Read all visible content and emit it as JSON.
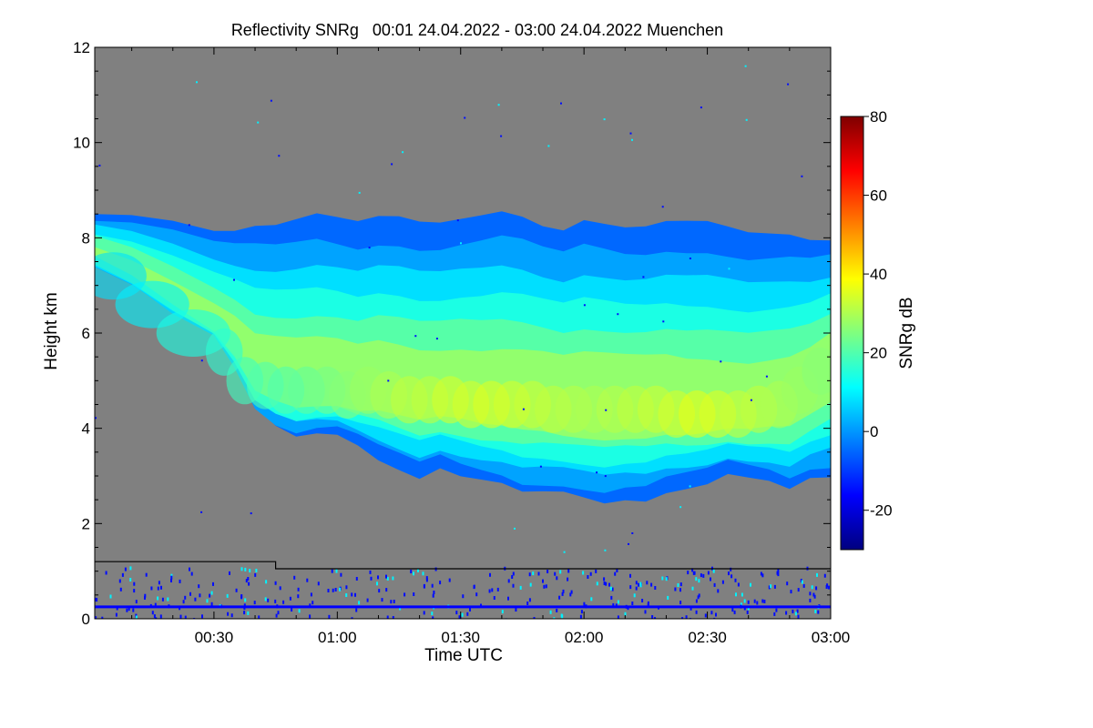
{
  "chart_data": {
    "type": "heatmap",
    "title": "Reflectivity SNRg   00:01 24.04.2022 - 03:00 24.04.2022 Muenchen",
    "xlabel": "Time UTC",
    "ylabel": "Height km",
    "x_ticks": [
      "00:30",
      "01:00",
      "01:30",
      "02:00",
      "02:30",
      "03:00"
    ],
    "x_tick_minutes": [
      30,
      60,
      90,
      120,
      150,
      180
    ],
    "xlim_minutes": [
      1,
      180
    ],
    "y_ticks": [
      0,
      2,
      4,
      6,
      8,
      10,
      12
    ],
    "ylim": [
      0,
      12
    ],
    "colorbar": {
      "label": "SNRg dB",
      "ticks": [
        -20,
        0,
        20,
        40,
        60,
        80
      ],
      "range": [
        -30,
        80
      ],
      "colormap": [
        "#00007f",
        "#0000ff",
        "#007fff",
        "#00ffff",
        "#7fff7f",
        "#ffff00",
        "#ff7f00",
        "#ff0000",
        "#7f0000"
      ]
    },
    "background_color": "#808080",
    "cloud": {
      "time_minutes": [
        1,
        10,
        20,
        30,
        35,
        40,
        45,
        50,
        55,
        60,
        65,
        70,
        75,
        80,
        85,
        90,
        95,
        100,
        105,
        110,
        115,
        120,
        125,
        130,
        135,
        140,
        145,
        150,
        155,
        160,
        165,
        170,
        175,
        180
      ],
      "top_km": [
        8.5,
        8.5,
        8.4,
        8.2,
        8.2,
        8.3,
        8.3,
        8.4,
        8.5,
        8.4,
        8.3,
        8.4,
        8.4,
        8.3,
        8.3,
        8.4,
        8.5,
        8.6,
        8.5,
        8.3,
        8.2,
        8.4,
        8.3,
        8.2,
        8.2,
        8.3,
        8.3,
        8.3,
        8.2,
        8.1,
        8.1,
        8.1,
        8.0,
        8.0
      ],
      "base_km": [
        7.4,
        7.0,
        6.4,
        6.0,
        5.3,
        4.4,
        4.0,
        3.8,
        3.9,
        3.9,
        3.7,
        3.4,
        3.2,
        3.0,
        3.2,
        3.0,
        2.9,
        2.8,
        2.6,
        2.6,
        2.6,
        2.5,
        2.4,
        2.5,
        2.5,
        2.7,
        2.8,
        2.9,
        3.1,
        3.0,
        2.9,
        2.7,
        2.9,
        2.9
      ],
      "core_snr_db": [
        5,
        8,
        10,
        14,
        16,
        18,
        20,
        20,
        22,
        24,
        26,
        28,
        30,
        32,
        32,
        34,
        34,
        35,
        34,
        33,
        32,
        31,
        30,
        31,
        32,
        33,
        34,
        36,
        35,
        33,
        32,
        30,
        28,
        26
      ],
      "core_height_km": [
        7.6,
        7.2,
        6.6,
        6.0,
        5.6,
        5.0,
        4.9,
        4.8,
        4.8,
        4.8,
        4.7,
        4.8,
        4.7,
        4.6,
        4.6,
        4.6,
        4.5,
        4.5,
        4.5,
        4.5,
        4.4,
        4.4,
        4.4,
        4.4,
        4.4,
        4.4,
        4.3,
        4.3,
        4.3,
        4.3,
        4.4,
        4.5,
        4.8,
        5.2
      ],
      "top_layer_snr_db": -5
    },
    "overlay_lines": [
      {
        "color": "#000000",
        "time_minutes": [
          1,
          45,
          45,
          180
        ],
        "height_km": [
          1.2,
          1.2,
          1.05,
          1.05
        ]
      },
      {
        "color": "#0000ff",
        "time_minutes": [
          1,
          180
        ],
        "height_km": [
          0.25,
          0.25
        ]
      }
    ]
  }
}
